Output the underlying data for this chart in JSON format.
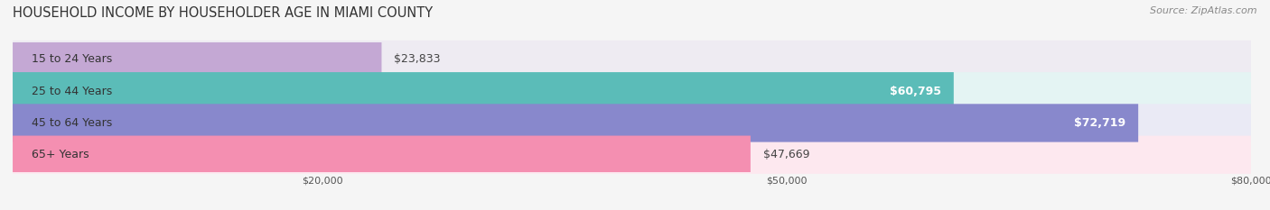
{
  "title": "HOUSEHOLD INCOME BY HOUSEHOLDER AGE IN MIAMI COUNTY",
  "source": "Source: ZipAtlas.com",
  "categories": [
    "15 to 24 Years",
    "25 to 44 Years",
    "45 to 64 Years",
    "65+ Years"
  ],
  "values": [
    23833,
    60795,
    72719,
    47669
  ],
  "labels": [
    "$23,833",
    "$60,795",
    "$72,719",
    "$47,669"
  ],
  "bar_colors": [
    "#c4a8d4",
    "#5bbcb8",
    "#8888cc",
    "#f48fb1"
  ],
  "bar_bg_colors": [
    "#eeebf2",
    "#e4f4f3",
    "#eaeaf5",
    "#fde8ef"
  ],
  "xlim": [
    0,
    80000
  ],
  "xticks": [
    20000,
    50000,
    80000
  ],
  "xtick_labels": [
    "$20,000",
    "$50,000",
    "$80,000"
  ],
  "title_fontsize": 10.5,
  "label_fontsize": 9,
  "source_fontsize": 8,
  "background_color": "#f5f5f5"
}
